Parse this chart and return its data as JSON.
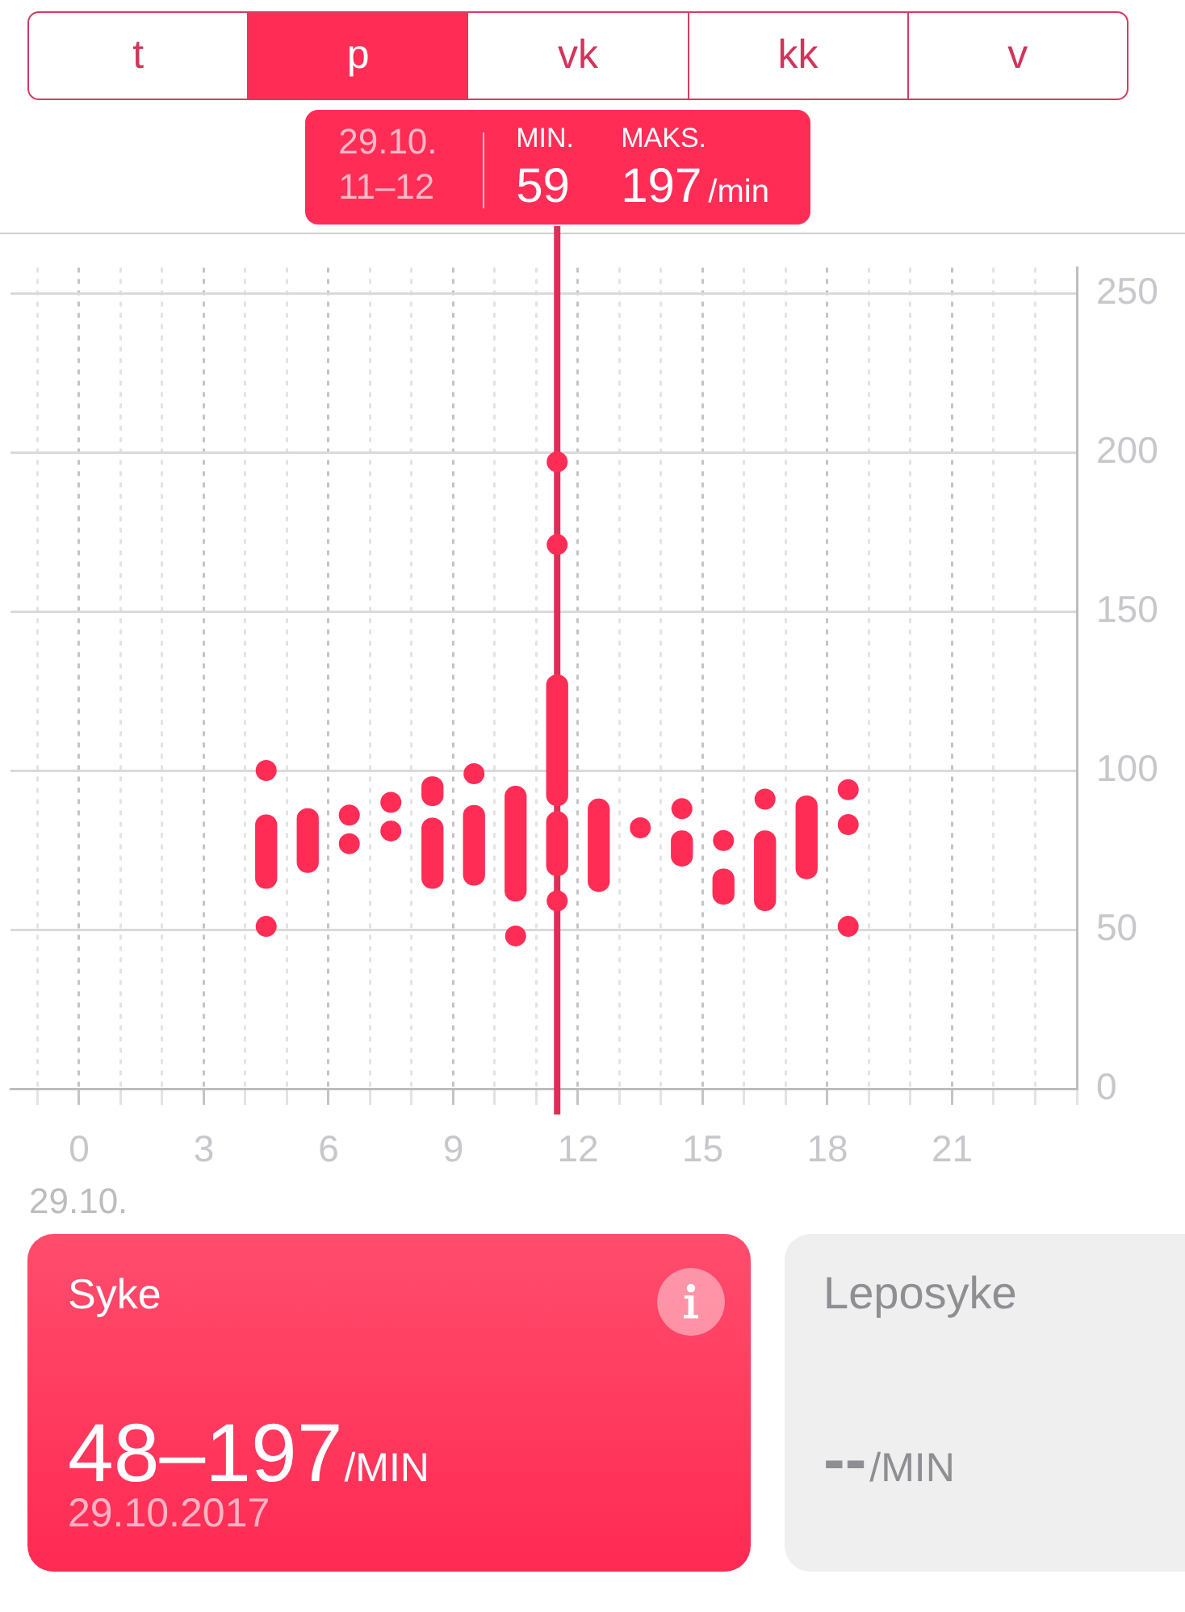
{
  "chart_data": {
    "type": "bar",
    "xlabel": "29.10.",
    "xlim": [
      -1.65,
      24
    ],
    "xticks": [
      {
        "value": -1,
        "label": null
      },
      0,
      {
        "value": 1,
        "label": null
      },
      {
        "value": 2,
        "label": null
      },
      3,
      {
        "value": 4,
        "label": null
      },
      {
        "value": 5,
        "label": null
      },
      6,
      {
        "value": 7,
        "label": null
      },
      {
        "value": 8,
        "label": null
      },
      9,
      {
        "value": 10,
        "label": null
      },
      {
        "value": 11,
        "label": null
      },
      12,
      {
        "value": 13,
        "label": null
      },
      {
        "value": 14,
        "label": null
      },
      15,
      {
        "value": 16,
        "label": null
      },
      {
        "value": 17,
        "label": null
      },
      18,
      {
        "value": 19,
        "label": null
      },
      {
        "value": 20,
        "label": null
      },
      21,
      {
        "value": 22,
        "label": null
      },
      {
        "value": 23,
        "label": null
      },
      {
        "value": 24,
        "label": null
      }
    ],
    "ylim": [
      0,
      258
    ],
    "yticks": [
      0,
      50,
      100,
      150,
      200,
      250
    ],
    "grid": true,
    "marker": "circle",
    "series": [
      {
        "type": "bar",
        "color": "#ff2d55",
        "x": [
          4.5,
          5.5,
          8.5,
          9.5,
          10.5,
          11.5,
          12.5,
          14.5,
          15.5,
          16.5,
          17.5
        ],
        "base": [
          63,
          68,
          63,
          64,
          59,
          67,
          62,
          70,
          58,
          56,
          66
        ],
        "values": [
          23,
          20,
          22,
          25,
          36,
          20,
          29,
          11,
          11,
          25,
          26
        ]
      },
      {
        "type": "bar",
        "color": "#ff2d55",
        "x": [
          8.5,
          11.5
        ],
        "base": [
          89,
          89
        ],
        "values": [
          9,
          41
        ]
      },
      {
        "type": "scatter",
        "color": "#ff2d55",
        "x": [
          4.5,
          4.5,
          6.5,
          6.5,
          7.5,
          7.5,
          9.5,
          10.5,
          11.5,
          11.5,
          11.5,
          13.5,
          14.5,
          15.5,
          16.5,
          18.5,
          18.5,
          18.5
        ],
        "values": [
          100,
          51,
          86,
          77,
          90,
          81,
          99,
          48,
          197,
          171,
          59,
          82,
          88,
          78,
          91,
          94,
          83,
          51
        ]
      }
    ],
    "ref_lines": [
      {
        "axis": "x",
        "value": 11.5,
        "color": "#dc2f57"
      }
    ],
    "annotations": [
      "t",
      "p",
      "vk",
      "kk",
      "v",
      "29.10.",
      "11–12",
      "MIN.",
      "59",
      "MAKS.",
      "197",
      "/min",
      "Syke",
      "48–197",
      "/MIN",
      "29.10.2017",
      "Leposyke",
      "--",
      "/MIN"
    ]
  }
}
